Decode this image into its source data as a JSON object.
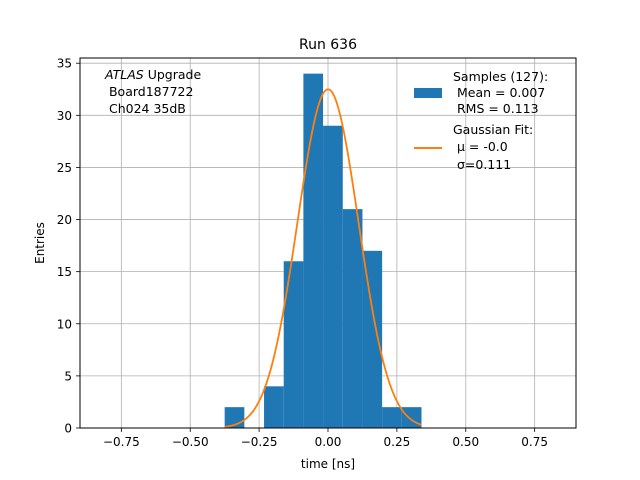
{
  "chart_data": {
    "type": "bar",
    "title": "Run 636",
    "xlabel": "time [ns]",
    "ylabel": "Entries",
    "xlim": [
      -0.9,
      0.9
    ],
    "ylim": [
      0,
      35.5
    ],
    "xticks": [
      -0.75,
      -0.5,
      -0.25,
      0.0,
      0.25,
      0.5,
      0.75
    ],
    "xtick_labels": [
      "−0.75",
      "−0.50",
      "−0.25",
      "0.00",
      "0.25",
      "0.50",
      "0.75"
    ],
    "yticks": [
      0,
      5,
      10,
      15,
      20,
      25,
      30,
      35
    ],
    "ytick_labels": [
      "0",
      "5",
      "10",
      "15",
      "20",
      "25",
      "30",
      "35"
    ],
    "grid": true,
    "legend_position": "top-right",
    "colors": {
      "hist": "#1f77b4",
      "fit": "#ff7f0e"
    },
    "annotation": {
      "italic": "ATLAS",
      "rest": " Upgrade",
      "line2": " Board187722",
      "line3": " Ch024 35dB"
    },
    "histogram": {
      "name_lines": [
        "Samples (127):",
        " Mean = 0.007",
        " RMS = 0.113"
      ],
      "bin_edges": [
        -0.375,
        -0.3036,
        -0.2321,
        -0.1607,
        -0.0893,
        -0.0179,
        0.0536,
        0.125,
        0.1964,
        0.2679,
        0.3393
      ],
      "counts": [
        2,
        0,
        4,
        16,
        34,
        29,
        21,
        17,
        2,
        2
      ]
    },
    "fit": {
      "name_lines": [
        "Gaussian Fit:",
        " μ = -0.0",
        " σ=0.111"
      ],
      "mu": 0.0,
      "sigma": 0.111,
      "amplitude": 32.5,
      "x_range": [
        -0.375,
        0.3393
      ]
    }
  }
}
